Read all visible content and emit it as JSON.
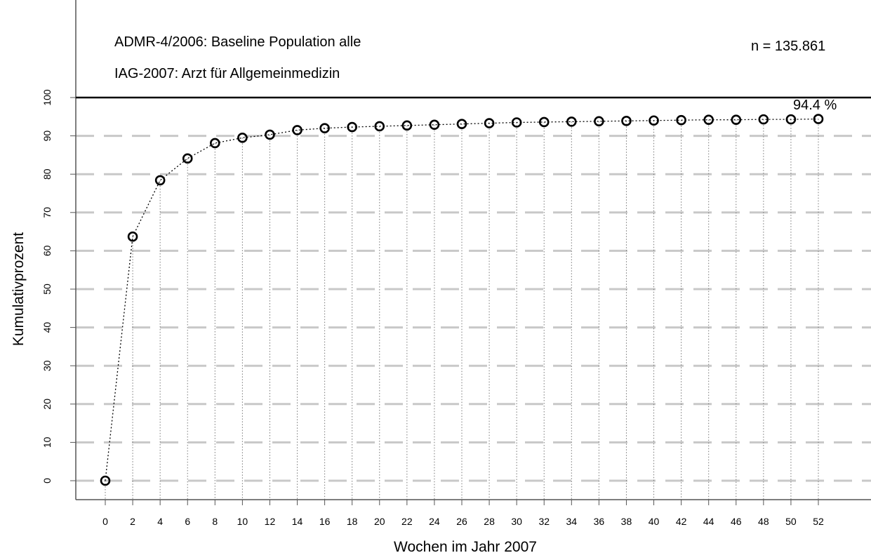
{
  "chart_data": {
    "type": "line",
    "title": "",
    "subtitle_lines": [
      "ADMR-4/2006: Baseline Population alle",
      "IAG-2007: Arzt für Allgemeinmedizin"
    ],
    "sample_size": "n = 135.861",
    "final_value_label": "94.4 %",
    "xlabel": "Wochen im Jahr 2007",
    "ylabel": "Kumulativprozent",
    "xlim": [
      -2,
      54
    ],
    "ylim": [
      -3,
      100
    ],
    "x_ticks": [
      0,
      2,
      4,
      6,
      8,
      10,
      12,
      14,
      16,
      18,
      20,
      22,
      24,
      26,
      28,
      30,
      32,
      34,
      36,
      38,
      40,
      42,
      44,
      46,
      48,
      50,
      52
    ],
    "y_ticks": [
      0,
      10,
      20,
      30,
      40,
      50,
      60,
      70,
      80,
      90,
      100
    ],
    "grid": true,
    "reference_line_y": 100,
    "x": [
      0,
      2,
      4,
      6,
      8,
      10,
      12,
      14,
      16,
      18,
      20,
      22,
      24,
      26,
      28,
      30,
      32,
      34,
      36,
      38,
      40,
      42,
      44,
      46,
      48,
      50,
      52
    ],
    "series": [
      {
        "values": [
          0,
          63.7,
          78.4,
          84.1,
          88.1,
          89.5,
          90.3,
          91.5,
          92.0,
          92.3,
          92.5,
          92.7,
          92.9,
          93.1,
          93.3,
          93.5,
          93.6,
          93.7,
          93.8,
          93.9,
          94.0,
          94.1,
          94.2,
          94.2,
          94.3,
          94.3,
          94.4
        ]
      }
    ]
  }
}
